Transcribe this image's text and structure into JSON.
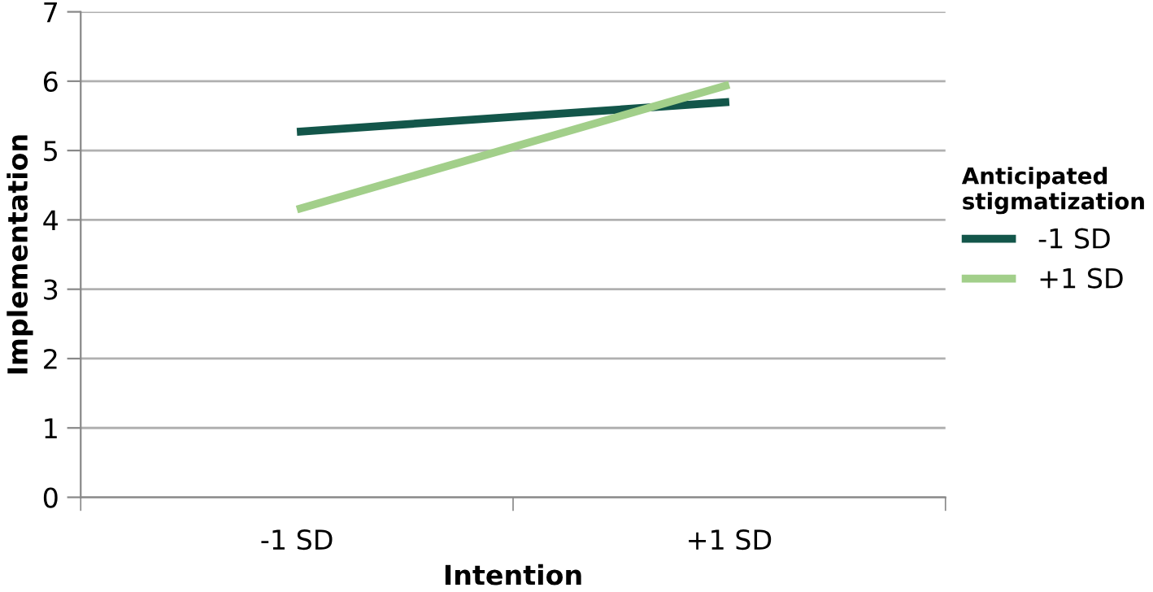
{
  "chart_data": {
    "type": "line",
    "xlabel": "Intention",
    "ylabel": "Implementation",
    "legend_title": "Anticipated stigmatization",
    "categories": [
      "-1 SD",
      "+1 SD"
    ],
    "series": [
      {
        "name": "-1 SD",
        "color": "#13564a",
        "values": [
          5.27,
          5.7
        ]
      },
      {
        "name": "+1 SD",
        "color": "#a2cf8a",
        "values": [
          4.15,
          5.95
        ]
      }
    ],
    "ylim": [
      0,
      7
    ],
    "yticks": [
      0,
      1,
      2,
      3,
      4,
      5,
      6,
      7
    ],
    "grid": "y",
    "legend": "right",
    "marker": "none",
    "line_style": "solid"
  }
}
